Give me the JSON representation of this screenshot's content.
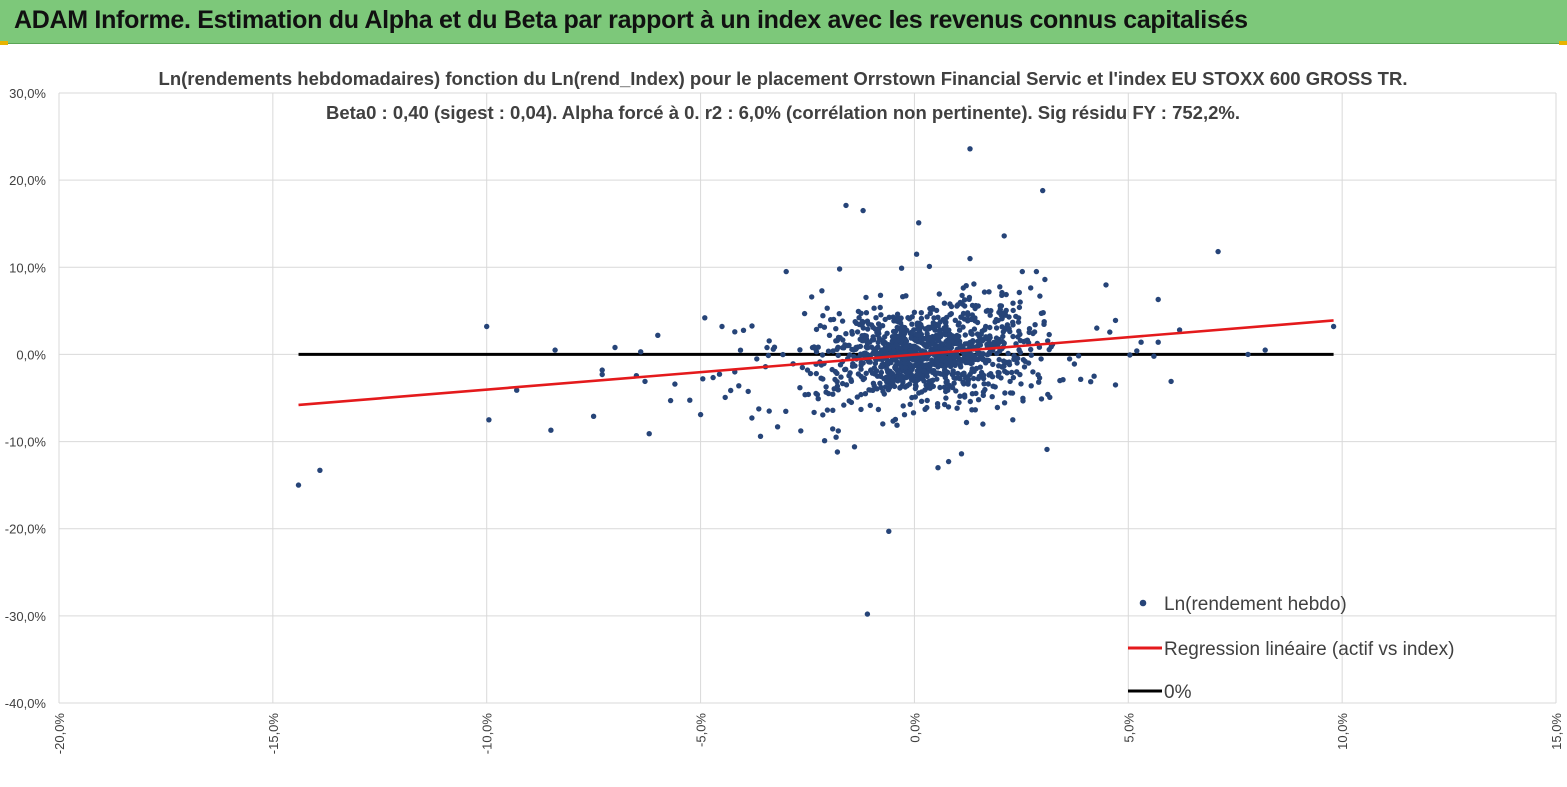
{
  "header": {
    "title": "ADAM Informe. Estimation du Alpha et du Beta par rapport à un index avec les revenus connus capitalisés"
  },
  "colors": {
    "header_bg": "#7dc87a",
    "points": "#264478",
    "regression": "#e41a1c",
    "zero_line": "#000000",
    "grid": "#d9d9d9"
  },
  "chart_data": {
    "type": "scatter",
    "title_line1": "Ln(rendements hebdomadaires) fonction du Ln(rend_Index) pour le placement Orrstown Financial Servic et l'index EU STOXX 600 GROSS TR.",
    "title_line2": "Beta0 : 0,40 (sigest : 0,04).  Alpha forcé à 0. r2 : 6,0% (corrélation non pertinente). Sig résidu FY : 752,2%.",
    "xlim": [
      -20,
      15
    ],
    "ylim": [
      -40,
      30
    ],
    "x_ticks": [
      -20,
      -15,
      -10,
      -5,
      0,
      5,
      10,
      15
    ],
    "x_tick_labels": [
      "-20,0%",
      "-15,0%",
      "-10,0%",
      "-5,0%",
      "0,0%",
      "5,0%",
      "10,0%",
      "15,0%"
    ],
    "y_ticks": [
      30,
      20,
      10,
      0,
      -10,
      -20,
      -30,
      -40
    ],
    "y_tick_labels": [
      "30,0%",
      "20,0%",
      "10,0%",
      "0,0%",
      "-10,0%",
      "-20,0%",
      "-30,0%",
      "-40,0%"
    ],
    "legend": {
      "position": "bottom-right",
      "points_label": "Ln(rendement hebdo)",
      "regression_label": "Regression linéaire (actif vs index)",
      "zero_label": "0%"
    },
    "regression": {
      "x": [
        -14.4,
        9.8
      ],
      "y": [
        -5.8,
        3.9
      ]
    },
    "zero_line": {
      "x": [
        -14.4,
        9.8
      ],
      "y": [
        0,
        0
      ]
    },
    "outliers": [
      [
        -14.4,
        -15.0
      ],
      [
        -13.9,
        -13.3
      ],
      [
        -10.0,
        3.2
      ],
      [
        -9.95,
        -7.5
      ],
      [
        -9.3,
        -4.1
      ],
      [
        -8.5,
        -8.7
      ],
      [
        -8.4,
        0.5
      ],
      [
        -7.5,
        -7.1
      ],
      [
        -7.3,
        -2.3
      ],
      [
        -7.3,
        -1.8
      ],
      [
        -7.0,
        0.8
      ],
      [
        -6.4,
        0.3
      ],
      [
        -6.3,
        -3.1
      ],
      [
        -6.2,
        -9.1
      ],
      [
        -6.0,
        2.2
      ],
      [
        -5.7,
        -5.3
      ],
      [
        -5.6,
        -3.4
      ],
      [
        -5.0,
        -6.9
      ],
      [
        -4.9,
        4.2
      ],
      [
        -4.5,
        3.2
      ],
      [
        -4.2,
        2.6
      ],
      [
        -4.2,
        -2.0
      ],
      [
        -3.8,
        -7.3
      ],
      [
        -3.6,
        -9.4
      ],
      [
        -3.3,
        0.6
      ],
      [
        -3.2,
        -8.3
      ],
      [
        -2.5,
        -1.8
      ],
      [
        -2.2,
        3.3
      ],
      [
        -2.1,
        -9.9
      ],
      [
        -1.8,
        1.6
      ],
      [
        -1.8,
        -11.2
      ],
      [
        -1.6,
        17.1
      ],
      [
        -1.4,
        -10.6
      ],
      [
        -1.2,
        16.5
      ],
      [
        -1.75,
        9.8
      ],
      [
        -1.1,
        -29.8
      ],
      [
        -0.6,
        -20.3
      ],
      [
        -0.3,
        9.9
      ],
      [
        0.1,
        15.1
      ],
      [
        0.05,
        11.5
      ],
      [
        0.35,
        10.1
      ],
      [
        0.55,
        -13.0
      ],
      [
        0.8,
        -12.3
      ],
      [
        1.1,
        -11.4
      ],
      [
        1.3,
        23.6
      ],
      [
        1.3,
        11.0
      ],
      [
        1.5,
        -5.2
      ],
      [
        1.6,
        -8.0
      ],
      [
        2.1,
        13.6
      ],
      [
        2.3,
        -7.5
      ],
      [
        3.0,
        18.8
      ],
      [
        3.05,
        8.6
      ],
      [
        3.1,
        -10.9
      ],
      [
        3.4,
        -3.0
      ],
      [
        4.2,
        -2.5
      ],
      [
        4.7,
        3.9
      ],
      [
        4.7,
        -3.5
      ],
      [
        5.2,
        0.4
      ],
      [
        5.3,
        1.4
      ],
      [
        5.6,
        -0.2
      ],
      [
        5.7,
        6.3
      ],
      [
        5.7,
        1.4
      ],
      [
        6.0,
        -3.1
      ],
      [
        6.2,
        2.8
      ],
      [
        7.1,
        11.8
      ],
      [
        7.8,
        0.0
      ],
      [
        8.2,
        0.5
      ],
      [
        9.8,
        3.2
      ]
    ]
  }
}
